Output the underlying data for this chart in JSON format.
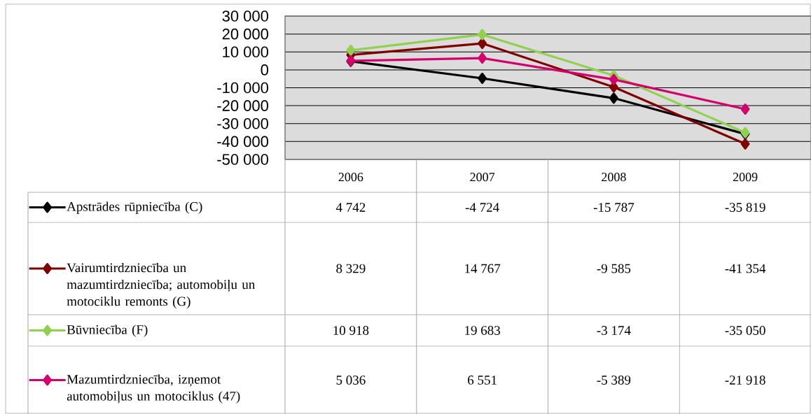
{
  "chart_data": {
    "type": "line",
    "categories": [
      "2006",
      "2007",
      "2008",
      "2009"
    ],
    "series": [
      {
        "name": "Apstrādes rūpniecība (C)",
        "color": "#000000",
        "values": [
          4742,
          -4724,
          -15787,
          -35819
        ],
        "value_labels": [
          "4 742",
          "-4 724",
          "-15 787",
          "-35 819"
        ]
      },
      {
        "name": "Vairumtirdzniecība un mazumtirdzniecība; automobiļu un motociklu remonts (G)",
        "color": "#800000",
        "values": [
          8329,
          14767,
          -9585,
          -41354
        ],
        "value_labels": [
          "8 329",
          "14 767",
          "-9 585",
          "-41 354"
        ]
      },
      {
        "name": "Būvniecība (F)",
        "color": "#92d050",
        "values": [
          10918,
          19683,
          -3174,
          -35050
        ],
        "value_labels": [
          "10 918",
          "19 683",
          "-3 174",
          "-35 050"
        ]
      },
      {
        "name": "Mazumtirdzniecība, izņemot automobiļus un motociklus (47)",
        "color": "#d4006e",
        "values": [
          5036,
          6551,
          -5389,
          -21918
        ],
        "value_labels": [
          "5 036",
          "6 551",
          "-5 389",
          "-21 918"
        ]
      }
    ],
    "ylim": [
      -50000,
      30000
    ],
    "yticks": [
      {
        "value": 30000,
        "label": "30 000"
      },
      {
        "value": 20000,
        "label": "20 000"
      },
      {
        "value": 10000,
        "label": "10 000"
      },
      0,
      {
        "value": -10000,
        "label": "-10 000"
      },
      {
        "value": -20000,
        "label": "-20 000"
      },
      {
        "value": -30000,
        "label": "-30 000"
      },
      {
        "value": -40000,
        "label": "-40 000"
      },
      {
        "value": -50000,
        "label": "-50 000"
      }
    ],
    "grid": "y",
    "legend": "bottom",
    "marker": "diamond",
    "line_style": "solid"
  }
}
